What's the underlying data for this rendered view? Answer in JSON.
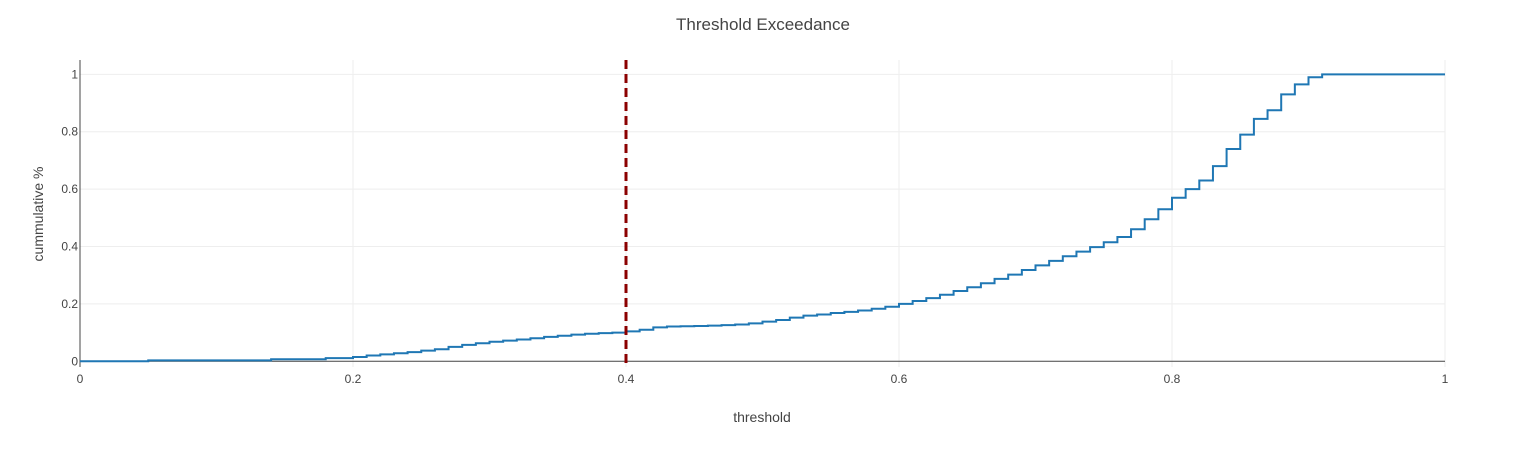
{
  "chart_data": {
    "type": "line",
    "title": "Threshold Exceedance",
    "xlabel": "threshold",
    "ylabel": "cummulative %",
    "xlim": [
      0,
      1
    ],
    "ylim": [
      -0.02,
      1.05
    ],
    "x_ticks": [
      0,
      0.2,
      0.4,
      0.6,
      0.8,
      1
    ],
    "x_tick_labels": [
      "0",
      "0.2",
      "0.4",
      "0.6",
      "0.8",
      "1"
    ],
    "y_ticks": [
      0,
      0.2,
      0.4,
      0.6,
      0.8,
      1
    ],
    "y_tick_labels": [
      "0",
      "0.2",
      "0.4",
      "0.6",
      "0.8",
      "1"
    ],
    "grid": true,
    "line_color": "#1f77b4",
    "threshold_color": "#8b0000",
    "threshold_x": 0.4,
    "series": [
      {
        "step": "hv",
        "x": [
          0,
          0.05,
          0.14,
          0.18,
          0.2,
          0.21,
          0.22,
          0.23,
          0.24,
          0.25,
          0.26,
          0.27,
          0.28,
          0.29,
          0.3,
          0.31,
          0.32,
          0.33,
          0.34,
          0.35,
          0.36,
          0.37,
          0.38,
          0.39,
          0.4,
          0.41,
          0.42,
          0.43,
          0.44,
          0.45,
          0.46,
          0.47,
          0.48,
          0.49,
          0.5,
          0.51,
          0.52,
          0.53,
          0.54,
          0.55,
          0.56,
          0.57,
          0.58,
          0.59,
          0.6,
          0.61,
          0.62,
          0.63,
          0.64,
          0.65,
          0.66,
          0.67,
          0.68,
          0.69,
          0.7,
          0.71,
          0.72,
          0.73,
          0.74,
          0.75,
          0.76,
          0.77,
          0.78,
          0.79,
          0.8,
          0.81,
          0.82,
          0.83,
          0.84,
          0.85,
          0.86,
          0.87,
          0.88,
          0.89,
          0.9,
          0.91,
          1.0
        ],
        "y": [
          0,
          0.003,
          0.007,
          0.011,
          0.015,
          0.02,
          0.024,
          0.028,
          0.032,
          0.037,
          0.042,
          0.05,
          0.057,
          0.063,
          0.068,
          0.072,
          0.076,
          0.08,
          0.085,
          0.089,
          0.093,
          0.096,
          0.098,
          0.1,
          0.104,
          0.11,
          0.118,
          0.121,
          0.122,
          0.123,
          0.124,
          0.126,
          0.128,
          0.132,
          0.138,
          0.144,
          0.152,
          0.159,
          0.163,
          0.168,
          0.172,
          0.177,
          0.183,
          0.19,
          0.2,
          0.21,
          0.22,
          0.232,
          0.245,
          0.258,
          0.272,
          0.287,
          0.302,
          0.318,
          0.334,
          0.35,
          0.366,
          0.382,
          0.398,
          0.415,
          0.433,
          0.46,
          0.495,
          0.53,
          0.57,
          0.6,
          0.63,
          0.68,
          0.74,
          0.79,
          0.845,
          0.875,
          0.93,
          0.965,
          0.99,
          1.0,
          1.0
        ]
      }
    ]
  }
}
